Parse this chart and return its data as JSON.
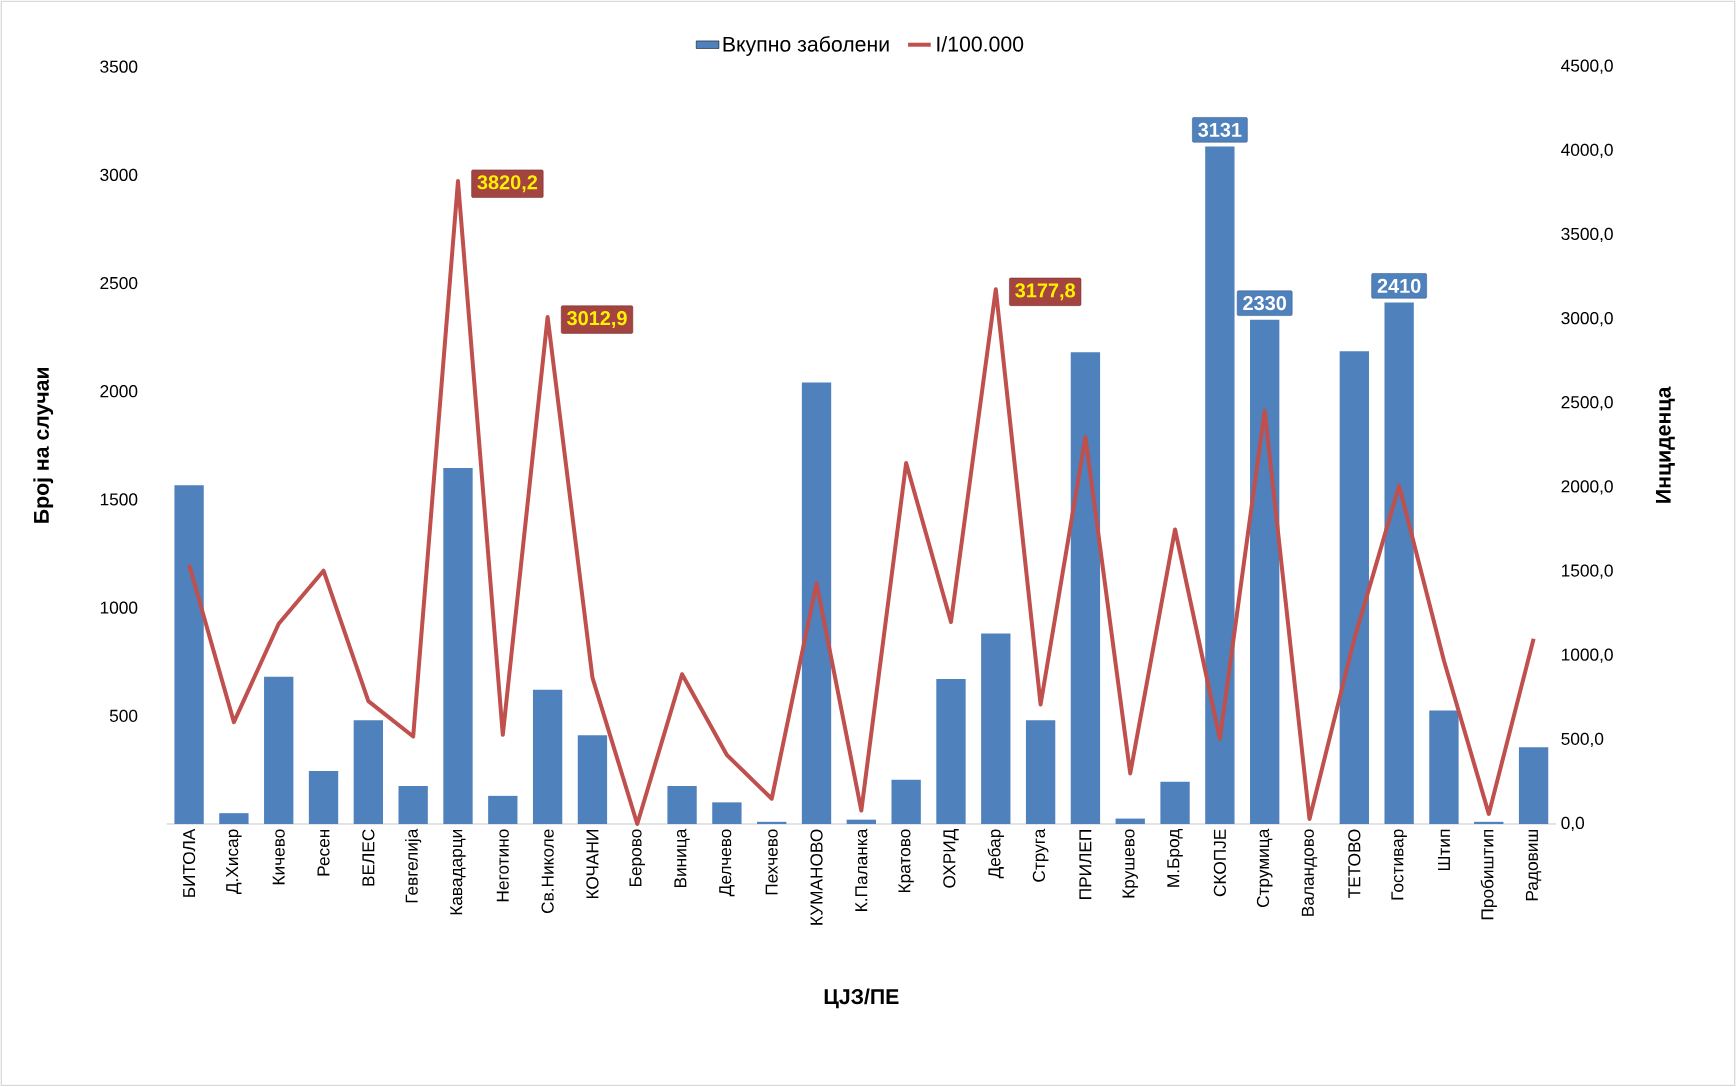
{
  "chart_data": {
    "type": "bar",
    "xlabel": "ЦЈЗ/ПЕ",
    "ylabel": "Број на случаи",
    "y2label": "Инциденца",
    "categories": [
      "БИТОЛА",
      "Д.Хисар",
      "Кичево",
      "Ресен",
      "ВЕЛЕС",
      "Гевгелија",
      "Кавадарци",
      "Неготино",
      "Св.Николе",
      "КОЧАНИ",
      "Берово",
      "Виница",
      "Делчево",
      "Пехчево",
      "КУМАНОВО",
      "К.Паланка",
      "Кратово",
      "ОХРИД",
      "Дебар",
      "Струга",
      "ПРИЛЕП",
      "Крушево",
      "М.Брод",
      "СКОПЈЕ",
      "Струмица",
      "Валандово",
      "ТЕТОВО",
      "Гостивар",
      "Штип",
      "Пробиштип",
      "Радовиш"
    ],
    "series": [
      {
        "name": "Вкупно заболени",
        "color": "#4f81bd",
        "values": [
          1565,
          50,
          680,
          245,
          480,
          175,
          1645,
          130,
          620,
          410,
          0,
          175,
          100,
          10,
          2040,
          20,
          205,
          670,
          880,
          480,
          2180,
          25,
          195,
          3131,
          2330,
          0,
          2185,
          2410,
          525,
          10,
          355
        ],
        "value_labels": [
          null,
          null,
          null,
          null,
          null,
          null,
          null,
          null,
          null,
          null,
          null,
          null,
          null,
          null,
          null,
          null,
          null,
          null,
          null,
          null,
          null,
          null,
          null,
          "3131",
          "2330",
          null,
          null,
          "2410",
          null,
          null,
          null
        ]
      },
      {
        "name": "I/100.000",
        "type": "line",
        "axis": "y2",
        "color": "#c0504d",
        "values": [
          1540,
          605,
          1190,
          1505,
          730,
          520,
          3820.2,
          530,
          3012.9,
          870,
          0,
          890,
          410,
          150,
          1430,
          80,
          2145,
          1200,
          3177.8,
          710,
          2300,
          300,
          1750,
          505,
          2455,
          30,
          1100,
          2010,
          970,
          60,
          1100
        ],
        "value_labels": [
          null,
          null,
          null,
          null,
          null,
          null,
          "3820,2",
          null,
          "3012,9",
          null,
          null,
          null,
          null,
          null,
          null,
          null,
          null,
          null,
          "3177,8",
          null,
          null,
          null,
          null,
          null,
          null,
          null,
          null,
          null,
          null,
          null,
          null
        ]
      }
    ],
    "ylim": [
      0,
      3500
    ],
    "yticks": [
      500,
      1000,
      1500,
      2000,
      2500,
      3000,
      3500
    ],
    "y2lim": [
      0,
      4500
    ],
    "y2ticks": [
      {
        "value": 0,
        "label": "0,0"
      },
      {
        "value": 500,
        "label": "500,0"
      },
      {
        "value": 1000,
        "label": "1000,0"
      },
      {
        "value": 1500,
        "label": "1500,0"
      },
      {
        "value": 2000,
        "label": "2000,0"
      },
      {
        "value": 2500,
        "label": "2500,0"
      },
      {
        "value": 3000,
        "label": "3000,0"
      },
      {
        "value": 3500,
        "label": "3500,0"
      },
      {
        "value": 4000,
        "label": "4000,0"
      },
      {
        "value": 4500,
        "label": "4500,0"
      }
    ],
    "legend": "top",
    "grid": false
  }
}
